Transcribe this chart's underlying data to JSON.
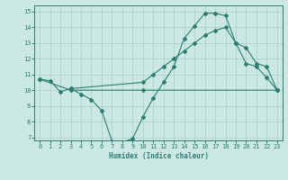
{
  "line1_x": [
    0,
    1,
    2,
    3,
    4,
    5,
    6,
    7,
    8,
    9,
    10,
    11,
    12,
    13,
    14,
    15,
    16,
    17,
    18,
    19,
    20,
    21,
    22,
    23
  ],
  "line1_y": [
    10.7,
    10.6,
    9.9,
    10.1,
    9.75,
    9.4,
    8.7,
    6.75,
    6.7,
    6.9,
    8.3,
    9.5,
    10.5,
    11.5,
    13.3,
    14.1,
    14.9,
    14.9,
    14.75,
    13.0,
    11.7,
    11.5,
    10.8,
    10.0
  ],
  "line2_x": [
    0,
    3,
    10,
    23
  ],
  "line2_y": [
    10.7,
    10.0,
    10.0,
    10.0
  ],
  "line3_x": [
    3,
    10,
    11,
    12,
    13,
    14,
    15,
    16,
    17,
    18,
    19,
    20,
    21,
    22,
    23
  ],
  "line3_y": [
    10.1,
    10.5,
    11.0,
    11.5,
    12.0,
    12.5,
    13.0,
    13.5,
    13.8,
    14.0,
    13.0,
    12.7,
    11.7,
    11.5,
    10.0
  ],
  "color": "#2d7d6e",
  "bg_color": "#cce8e4",
  "grid_color": "#aaccc8",
  "xlabel": "Humidex (Indice chaleur)",
  "xlim": [
    -0.5,
    23.5
  ],
  "ylim": [
    6.8,
    15.4
  ],
  "yticks": [
    7,
    8,
    9,
    10,
    11,
    12,
    13,
    14,
    15
  ],
  "xticks": [
    0,
    1,
    2,
    3,
    4,
    5,
    6,
    7,
    8,
    9,
    10,
    11,
    12,
    13,
    14,
    15,
    16,
    17,
    18,
    19,
    20,
    21,
    22,
    23
  ]
}
